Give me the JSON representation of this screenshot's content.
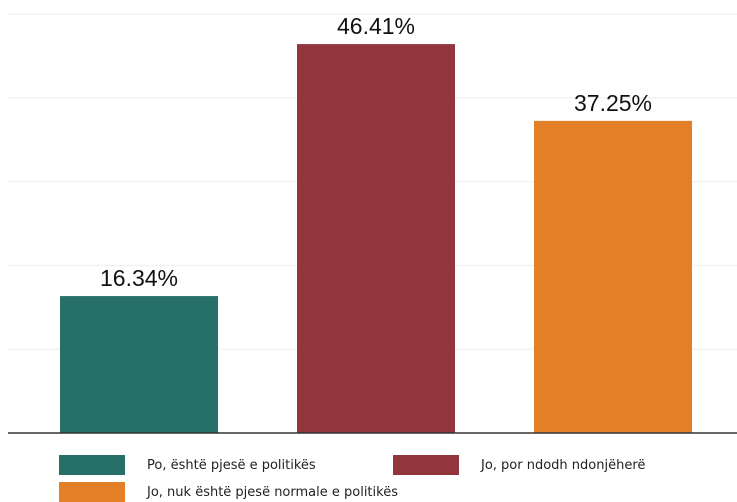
{
  "chart_data": {
    "type": "bar",
    "categories": [
      "Po, është pjesë e politikës",
      "Jo, por ndodh ndonjëherë",
      "Jo, nuk është pjesë normale e politikës"
    ],
    "values": [
      16.34,
      46.41,
      37.25
    ],
    "data_labels": [
      "16.34%",
      "46.41%",
      "37.25%"
    ],
    "colors": [
      "#277068",
      "#92353D",
      "#E38027"
    ],
    "ylim": [
      0,
      50
    ],
    "grid": true,
    "legend_position": "bottom"
  }
}
